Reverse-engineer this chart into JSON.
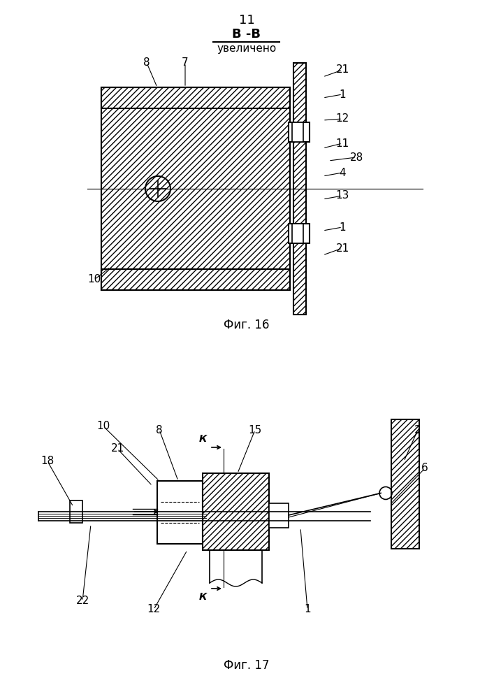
{
  "page_number": "11",
  "fig16_title": "В -В",
  "fig16_subtitle": "увеличено",
  "fig16_caption": "Фиг. 16",
  "fig17_caption": "Фиг. 17",
  "bg_color": "#ffffff",
  "line_color": "#000000"
}
